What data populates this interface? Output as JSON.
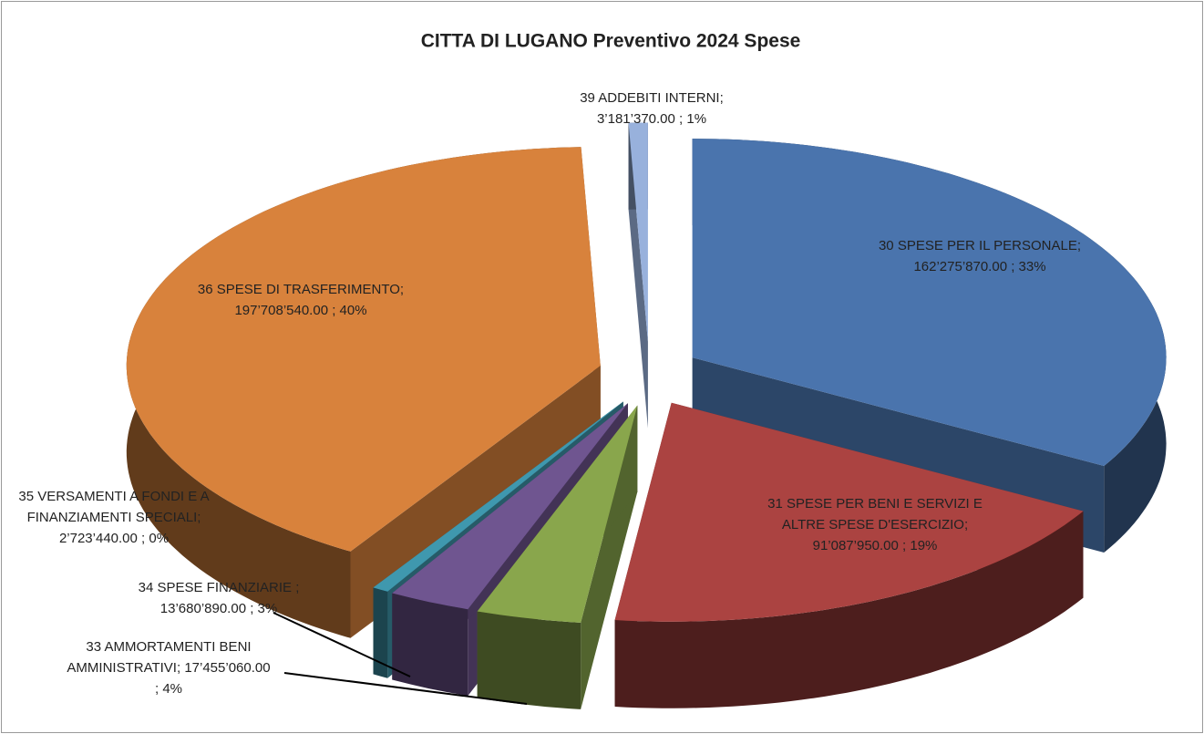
{
  "chart_data": {
    "type": "pie",
    "title": "CITTA DI LUGANO Preventivo 2024 Spese",
    "categories": [
      "30 SPESE PER IL PERSONALE",
      "31 SPESE PER BENI E SERVIZI E ALTRE SPESE D'ESERCIZIO",
      "33 AMMORTAMENTI BENI AMMINISTRATIVI",
      "34 SPESE FINANZIARIE",
      "35 VERSAMENTI A FONDI E A FINANZIAMENTI SPECIALI",
      "36 SPESE DI TRASFERIMENTO",
      "39 ADDEBITI INTERNI"
    ],
    "values": [
      162275870,
      91087950,
      17455060,
      13680890,
      2723440,
      197708540,
      3181370
    ],
    "value_labels": [
      [
        "30 SPESE PER IL PERSONALE;",
        "162’275’870.00 ; 33%"
      ],
      [
        "31 SPESE PER BENI E SERVIZI E",
        "ALTRE SPESE D'ESERCIZIO;",
        "91’087’950.00 ; 19%"
      ],
      [
        "33 AMMORTAMENTI BENI",
        "AMMINISTRATIVI; 17’455’060.00",
        "; 4%"
      ],
      [
        "34 SPESE FINANZIARIE ;",
        "13’680’890.00 ; 3%"
      ],
      [
        "35 VERSAMENTI A FONDI E A",
        "FINANZIAMENTI SPECIALI;",
        "2’723’440.00 ; 0%"
      ],
      [
        "36 SPESE DI TRASFERIMENTO;",
        "197’708’540.00 ; 40%"
      ],
      [
        "39 ADDEBITI INTERNI;",
        "3’181’370.00 ; 1%"
      ]
    ],
    "colors": [
      "#4a74ad",
      "#ab4341",
      "#89a64c",
      "#6f5590",
      "#3f98ae",
      "#d8823c",
      "#98b1dc"
    ]
  }
}
